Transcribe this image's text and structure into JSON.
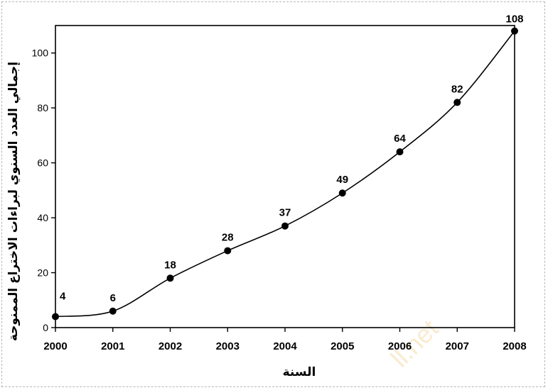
{
  "chart_data": {
    "type": "line",
    "title": "",
    "xlabel": "السنة",
    "ylabel": "إجمالي العدد السنوي لبراءات الاختراع الممنوحة",
    "categories": [
      "2000",
      "2001",
      "2002",
      "2003",
      "2004",
      "2005",
      "2006",
      "2007",
      "2008"
    ],
    "x": [
      2000,
      2001,
      2002,
      2003,
      2004,
      2005,
      2006,
      2007,
      2008
    ],
    "values": [
      4,
      6,
      18,
      28,
      37,
      49,
      64,
      82,
      108
    ],
    "data_labels": [
      "4",
      "6",
      "18",
      "28",
      "37",
      "49",
      "64",
      "82",
      "108"
    ],
    "xlim": [
      2000,
      2008
    ],
    "ylim": [
      0,
      110
    ],
    "yticks": [
      0,
      20,
      40,
      60,
      80,
      100
    ],
    "ytick_labels": [
      "0",
      "20",
      "40",
      "60",
      "80",
      "100"
    ],
    "smooth": true,
    "grid": false,
    "legend": "none",
    "colors": {
      "line": "#000000",
      "marker": "#000000",
      "watermark": "#f3d39a"
    },
    "watermark_text": "ll.net"
  }
}
